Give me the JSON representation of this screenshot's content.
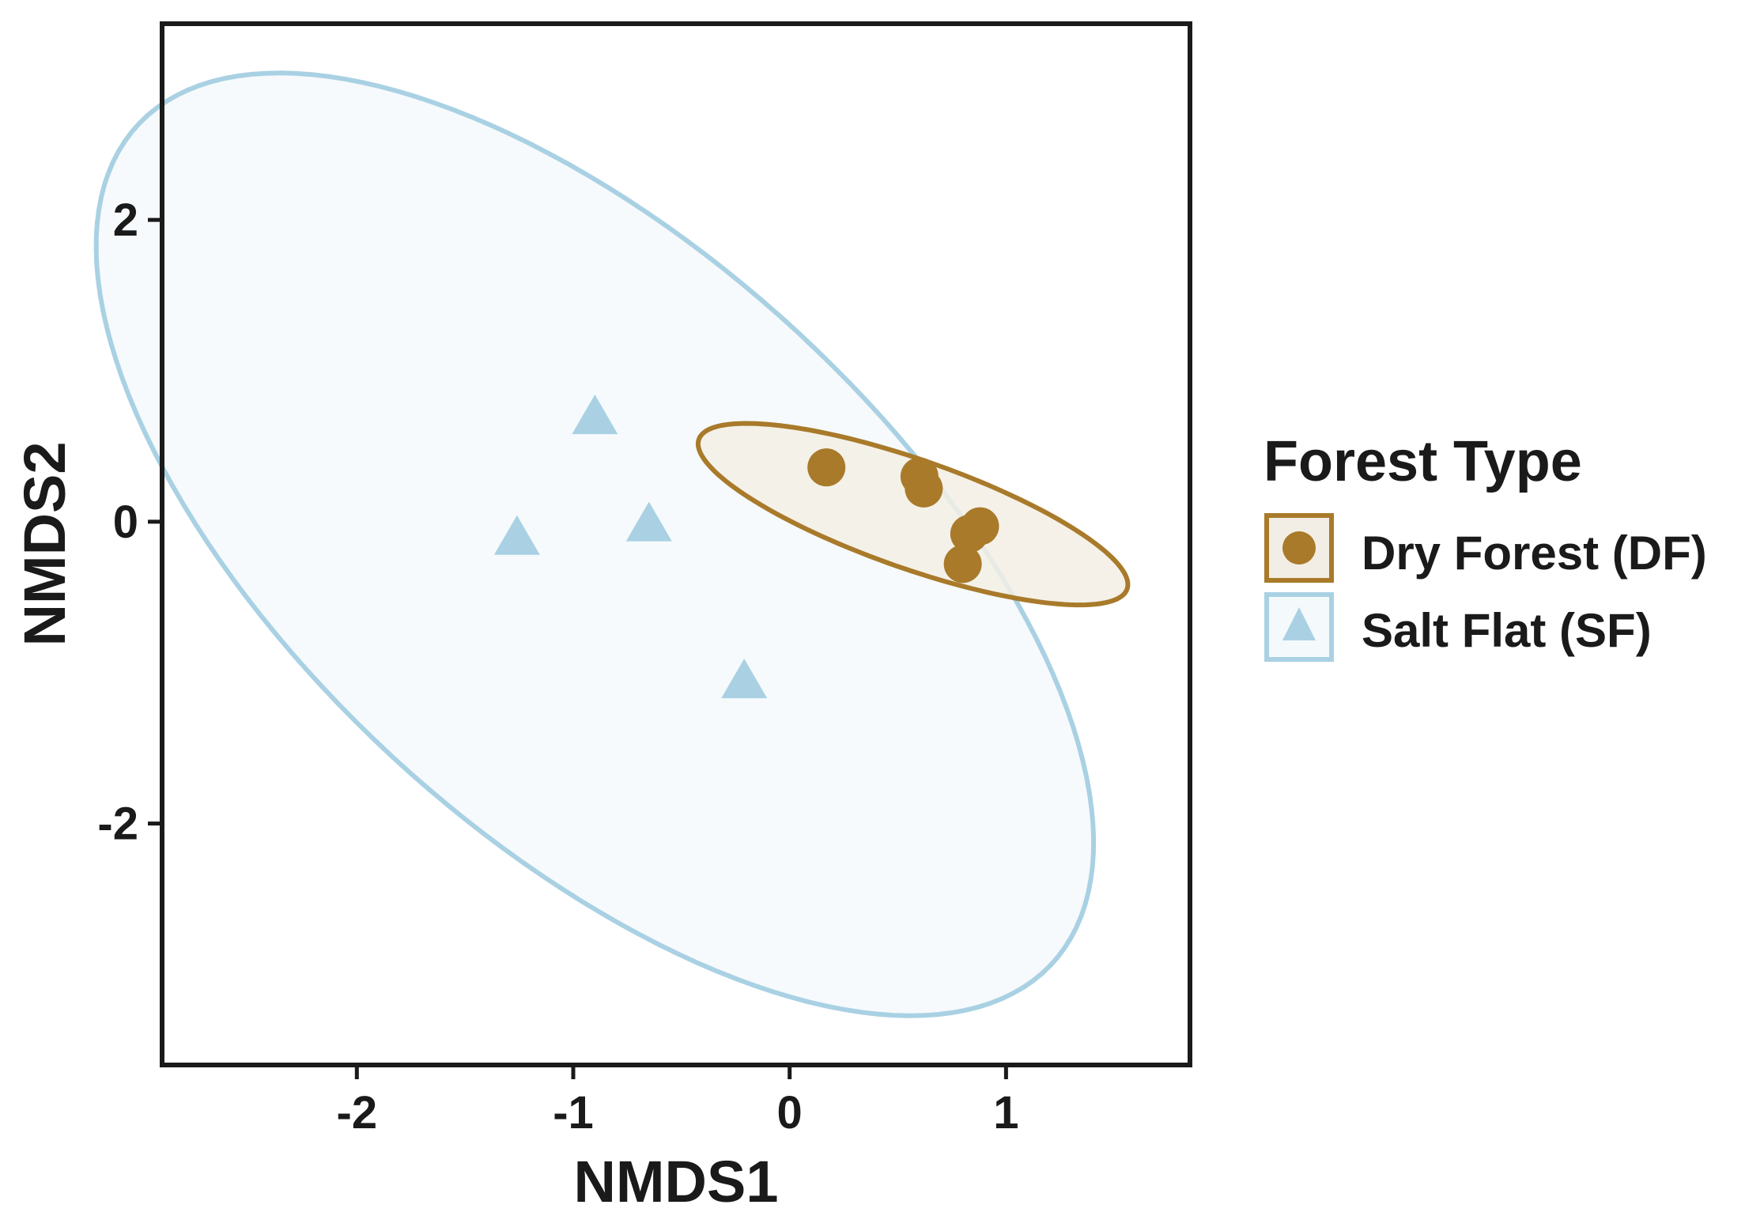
{
  "chart_data": {
    "type": "scatter",
    "title": "",
    "xlabel": "NMDS1",
    "ylabel": "NMDS2",
    "xlim": [
      -2.9,
      1.85
    ],
    "ylim": [
      -3.6,
      3.3
    ],
    "xticks": [
      -2,
      -1,
      0,
      1
    ],
    "yticks": [
      -2,
      0,
      2
    ],
    "xtick_labels": [
      "-2",
      "-1",
      "0",
      "1"
    ],
    "ytick_labels": [
      "-2",
      "0",
      "2"
    ],
    "grid": false,
    "legend": {
      "title": "Forest Type",
      "position": "right"
    },
    "series": [
      {
        "name": "Dry Forest (DF)",
        "marker": "circle",
        "color": "#A87A2A",
        "points": [
          {
            "x": 0.17,
            "y": 0.36
          },
          {
            "x": 0.6,
            "y": 0.3
          },
          {
            "x": 0.62,
            "y": 0.22
          },
          {
            "x": 0.88,
            "y": -0.03
          },
          {
            "x": 0.83,
            "y": -0.08
          },
          {
            "x": 0.8,
            "y": -0.28
          }
        ],
        "ellipse": {
          "cx": 0.57,
          "cy": 0.05,
          "a": 1.11,
          "b": 0.34,
          "angle_deg": -28
        }
      },
      {
        "name": "Salt Flat (SF)",
        "marker": "triangle",
        "color": "#A9D1E3",
        "points": [
          {
            "x": -0.9,
            "y": 0.68
          },
          {
            "x": -1.26,
            "y": -0.12
          },
          {
            "x": -0.65,
            "y": -0.03
          },
          {
            "x": -0.21,
            "y": -1.07
          }
        ],
        "ellipse": {
          "cx": -0.9,
          "cy": -0.15,
          "a": 3.55,
          "b": 1.57,
          "angle_deg": -58
        }
      }
    ]
  }
}
